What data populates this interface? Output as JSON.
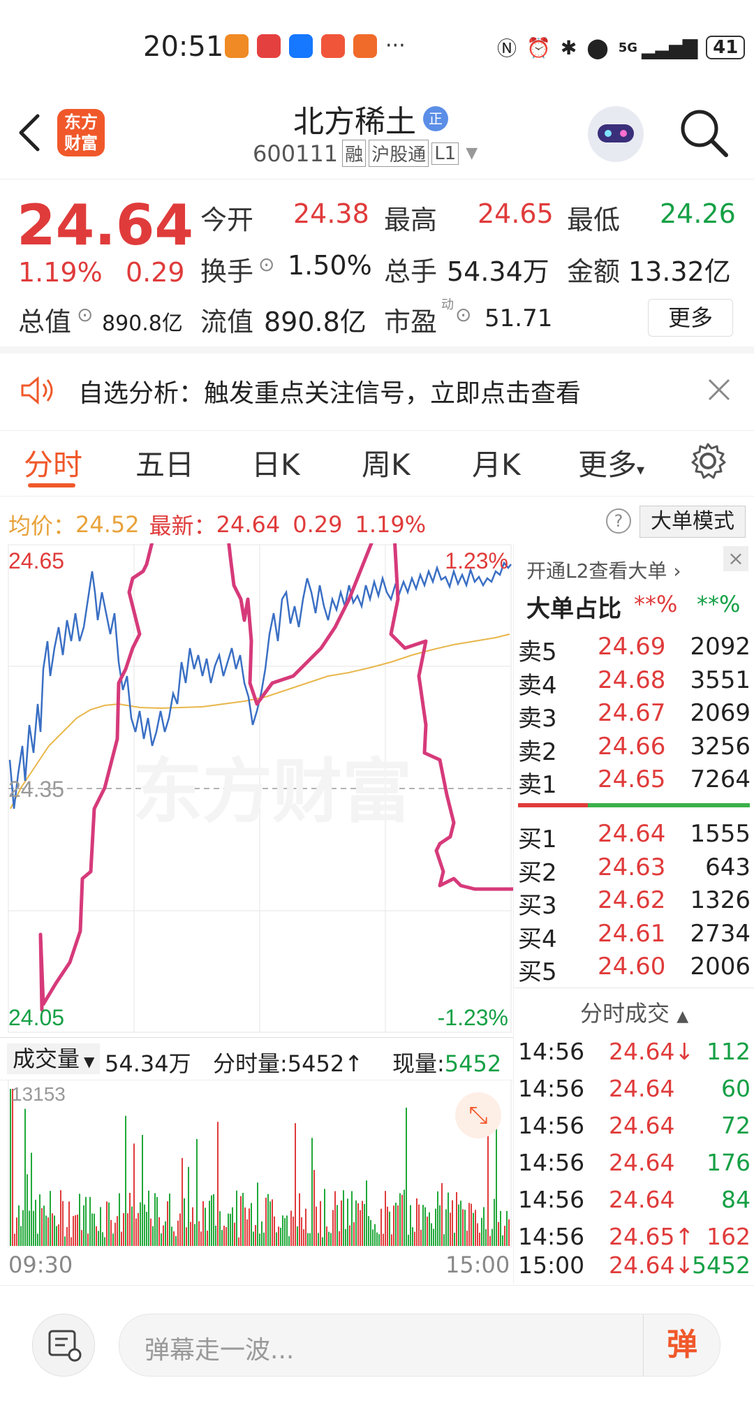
{
  "status_bar": {
    "time": "20:51",
    "more_dots": "···",
    "signal_label": "5G",
    "battery": "41"
  },
  "header": {
    "app_logo_line1": "东方",
    "app_logo_line2": "财富",
    "stock_name": "北方稀土",
    "stock_badge": "正",
    "stock_code": "600111",
    "tags": [
      "融",
      "沪股通",
      "L1"
    ]
  },
  "quote": {
    "price": "24.64",
    "change_pct": "1.19%",
    "change_amt": "0.29",
    "open_label": "今开",
    "open_value": "24.38",
    "high_label": "最高",
    "high_value": "24.65",
    "low_label": "最低",
    "low_value": "24.26",
    "turnover_label": "换手",
    "turnover_value": "1.50%",
    "volume_label": "总手",
    "volume_value": "54.34万",
    "amount_label": "金额",
    "amount_value": "13.32亿",
    "mktcap_label": "总值",
    "mktcap_value": "890.8亿",
    "float_label": "流值",
    "float_value": "890.8亿",
    "pe_label": "市盈",
    "pe_sup": "动",
    "pe_value": "51.71",
    "more_button": "更多"
  },
  "banner": {
    "text": "自选分析：触发重点关注信号，立即点击查看"
  },
  "tabs": [
    "分时",
    "五日",
    "日K",
    "周K",
    "月K",
    "更多"
  ],
  "active_tab": "分时",
  "info_row": {
    "avg_label": "均价：",
    "avg_value": "24.52",
    "latest_label": "最新：",
    "latest_value": "24.64",
    "latest_change": "0.29",
    "latest_pct": "1.19%",
    "help": "?",
    "mode_button": "大单模式"
  },
  "chart": {
    "y_top": "24.65",
    "y_mid": "24.35",
    "y_bottom": "24.05",
    "pct_top": "1.23%",
    "pct_bottom": "-1.23%",
    "watermark": "东方财富",
    "time_start": "09:30",
    "time_end": "15:00",
    "colors": {
      "price_line": "#3a6fc4",
      "avg_line": "#e8b64a",
      "annotation": "#d63a7a"
    }
  },
  "volume_header": {
    "label": "成交量",
    "total": "54.34万",
    "interval_label": "分时量:",
    "interval_value": "5452↑",
    "current_label": "现量:",
    "current_value": "5452",
    "max_label": "13153"
  },
  "panel": {
    "l2_link": "开通L2查看大单",
    "big_order_label": "大单占比",
    "big_order_red": "**%",
    "big_order_green": "**%",
    "asks": [
      {
        "label": "卖5",
        "price": "24.69",
        "qty": "2092"
      },
      {
        "label": "卖4",
        "price": "24.68",
        "qty": "3551"
      },
      {
        "label": "卖3",
        "price": "24.67",
        "qty": "2069"
      },
      {
        "label": "卖2",
        "price": "24.66",
        "qty": "3256"
      },
      {
        "label": "卖1",
        "price": "24.65",
        "qty": "7264"
      }
    ],
    "bids": [
      {
        "label": "买1",
        "price": "24.64",
        "qty": "1555"
      },
      {
        "label": "买2",
        "price": "24.63",
        "qty": "643"
      },
      {
        "label": "买3",
        "price": "24.62",
        "qty": "1326"
      },
      {
        "label": "买4",
        "price": "24.61",
        "qty": "2734"
      },
      {
        "label": "买5",
        "price": "24.60",
        "qty": "2006"
      }
    ],
    "trades_title": "分时成交",
    "trades": [
      {
        "time": "14:56",
        "price": "24.64↓",
        "qty": "112"
      },
      {
        "time": "14:56",
        "price": "24.64",
        "qty": "60"
      },
      {
        "time": "14:56",
        "price": "24.64",
        "qty": "72"
      },
      {
        "time": "14:56",
        "price": "24.64",
        "qty": "176"
      },
      {
        "time": "14:56",
        "price": "24.64",
        "qty": "84"
      },
      {
        "time": "14:56",
        "price": "24.65↑",
        "qty": "162"
      },
      {
        "time": "15:00",
        "price": "24.64↓",
        "qty": "5452"
      }
    ]
  },
  "bottom_bar": {
    "comment_placeholder": "弹幕走一波...",
    "danmaku_button": "弹"
  }
}
